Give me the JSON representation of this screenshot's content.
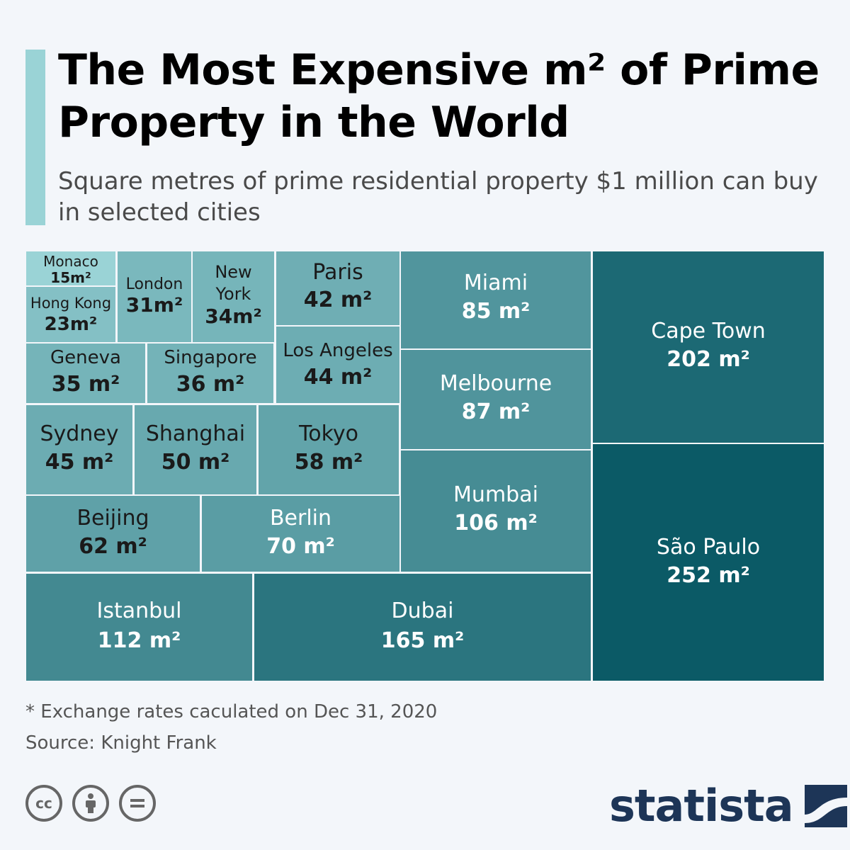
{
  "header": {
    "title": "The Most Expensive m² of Prime Property in the World",
    "subtitle": "Square metres of prime residential property $1 million can buy in selected cities"
  },
  "footer": {
    "note": "* Exchange rates caculated on Dec 31, 2020",
    "source": "Source: Knight Frank",
    "brand": "statista",
    "license_icons": [
      "cc-icon",
      "attribution-icon",
      "no-derivatives-icon"
    ]
  },
  "colors": {
    "background": "#f3f6fa",
    "accent_bar": "#9ad3d6",
    "scale": [
      "#9ad3d6",
      "#0b5a66"
    ],
    "brand": "#1d3557"
  },
  "chart_data": {
    "type": "treemap",
    "unit": "m²",
    "items": [
      {
        "city": "Monaco",
        "value": 15,
        "label": "15m²"
      },
      {
        "city": "Hong Kong",
        "value": 23,
        "label": "23m²"
      },
      {
        "city": "London",
        "value": 31,
        "label": "31m²"
      },
      {
        "city": "New York",
        "value": 34,
        "label": "34m²"
      },
      {
        "city": "Paris",
        "value": 42,
        "label": "42 m²"
      },
      {
        "city": "Geneva",
        "value": 35,
        "label": "35 m²"
      },
      {
        "city": "Singapore",
        "value": 36,
        "label": "36 m²"
      },
      {
        "city": "Los Angeles",
        "value": 44,
        "label": "44 m²"
      },
      {
        "city": "Sydney",
        "value": 45,
        "label": "45 m²"
      },
      {
        "city": "Shanghai",
        "value": 50,
        "label": "50 m²"
      },
      {
        "city": "Tokyo",
        "value": 58,
        "label": "58 m²"
      },
      {
        "city": "Beijing",
        "value": 62,
        "label": "62 m²"
      },
      {
        "city": "Berlin",
        "value": 70,
        "label": "70 m²"
      },
      {
        "city": "Miami",
        "value": 85,
        "label": "85 m²"
      },
      {
        "city": "Melbourne",
        "value": 87,
        "label": "87 m²"
      },
      {
        "city": "Mumbai",
        "value": 106,
        "label": "106 m²"
      },
      {
        "city": "Istanbul",
        "value": 112,
        "label": "112 m²"
      },
      {
        "city": "Dubai",
        "value": 165,
        "label": "165 m²"
      },
      {
        "city": "Cape Town",
        "value": 202,
        "label": "202 m²"
      },
      {
        "city": "São Paulo",
        "value": 252,
        "label": "252 m²"
      }
    ]
  }
}
